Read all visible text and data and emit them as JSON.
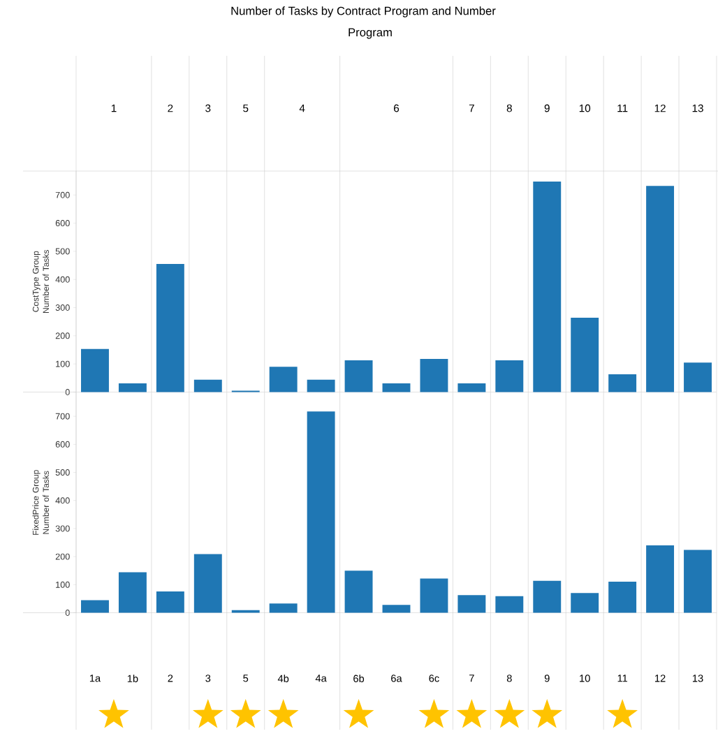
{
  "chart_data": [
    {
      "type": "bar",
      "title": "Number of Tasks by Contract Program and Number",
      "x2label": "Program",
      "annotations": [
        "1",
        "2",
        "3",
        "5",
        "4",
        "6",
        "7",
        "8",
        "9",
        "10",
        "11",
        "12",
        "13"
      ],
      "categories": [
        null,
        null,
        null,
        null,
        null,
        null,
        null,
        null,
        null,
        null,
        null,
        null,
        null,
        null,
        null,
        null,
        null
      ],
      "values": [
        153,
        31,
        455,
        44,
        5,
        90,
        44,
        113,
        31,
        118,
        31,
        113,
        748,
        264,
        63,
        732,
        105
      ],
      "color": "#1f77b4",
      "ylabel": "CostType Group Number of Tasks",
      "ylim": [
        0,
        785
      ],
      "yticks": [
        0,
        100,
        200,
        300,
        400,
        500,
        600,
        700
      ],
      "tick_labels": "y"
    },
    {
      "type": "bar",
      "categories": [
        "1a",
        "1b",
        "2",
        "3",
        "5",
        "4b",
        "4a",
        "6b",
        "6a",
        "6c",
        "7",
        "8",
        "9",
        "10",
        "11",
        "12",
        "13"
      ],
      "values": [
        45,
        144,
        76,
        209,
        9,
        33,
        717,
        150,
        28,
        122,
        63,
        59,
        114,
        70,
        111,
        240,
        224
      ],
      "color": "#1f77b4",
      "ylabel": "FixedPrice Group Number of Tasks",
      "ylim": [
        0,
        785
      ],
      "yticks": [
        0,
        100,
        200,
        300,
        400,
        500,
        600,
        700
      ]
    }
  ]
}
